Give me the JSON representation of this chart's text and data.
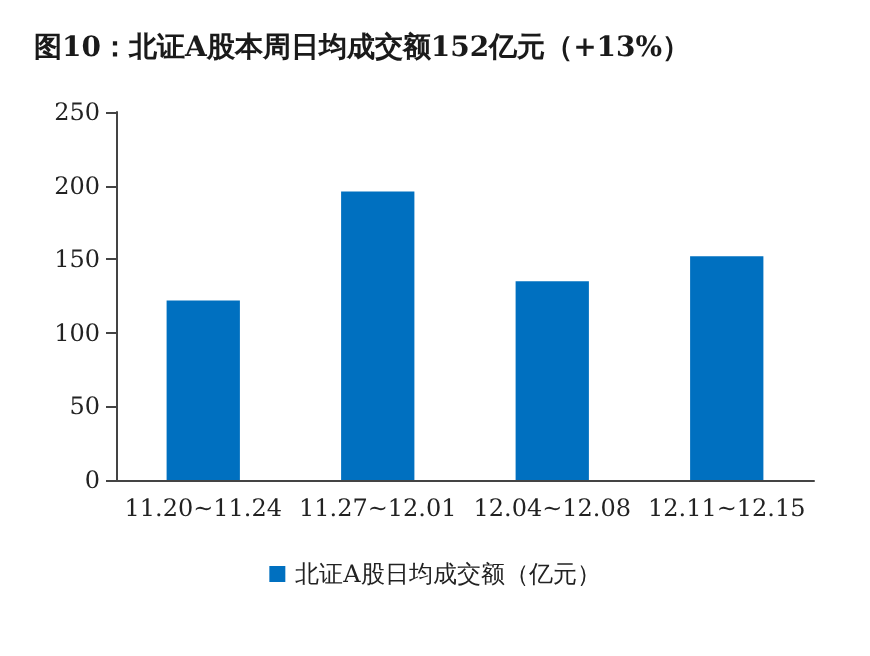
{
  "chart_data": {
    "type": "bar",
    "title": "图10：北证A股本周日均成交额152亿元（+13%）",
    "categories": [
      "11.20~11.24",
      "11.27~12.01",
      "12.04~12.08",
      "12.11~12.15"
    ],
    "series": [
      {
        "name": "北证A股日均成交额（亿元）",
        "color": "#0070c0",
        "values": [
          122,
          196,
          135,
          152
        ]
      }
    ],
    "ylim": [
      0,
      250
    ],
    "yticks": [
      0,
      50,
      100,
      150,
      200,
      250
    ],
    "grid": false,
    "legend": "bottom"
  }
}
